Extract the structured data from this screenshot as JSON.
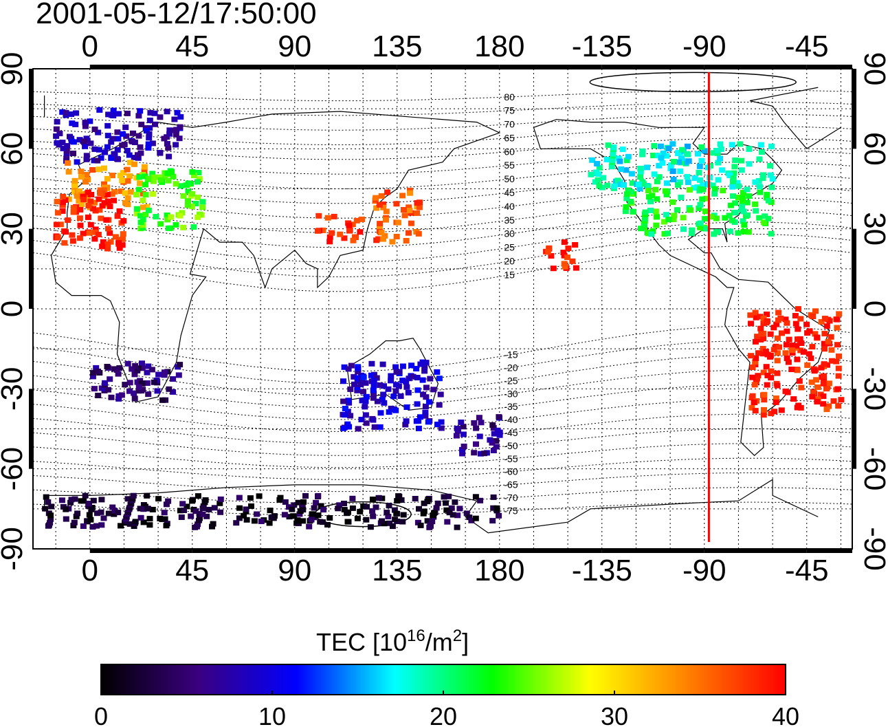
{
  "title": "2001-05-12/17:50:00",
  "colorbar": {
    "label_main": "TEC  [10",
    "label_sup1": "16",
    "label_mid": "/m",
    "label_sup2": "2",
    "label_end": "]",
    "ticks": [
      "0",
      "10",
      "20",
      "30",
      "40"
    ],
    "stops": [
      "#000000",
      "#3a0080",
      "#0000ff",
      "#00ffff",
      "#00ff00",
      "#ffff00",
      "#ff8000",
      "#ff0000"
    ]
  },
  "map": {
    "x_ticks_top": [
      "0",
      "45",
      "90",
      "135",
      "180",
      "-135",
      "-90",
      "-45"
    ],
    "x_ticks_bottom": [
      "0",
      "45",
      "90",
      "135",
      "180",
      "-135",
      "-90",
      "-45"
    ],
    "y_ticks_left": [
      "90",
      "60",
      "30",
      "0",
      "-30",
      "-60",
      "-90"
    ],
    "y_ticks_right": [
      "90",
      "60",
      "30",
      "0",
      "-30",
      "-60",
      "-90"
    ],
    "terminator_longitude": -88,
    "terminator_color": "#ff0000",
    "magnetic_latitude_labels": [
      "80",
      "75",
      "70",
      "65",
      "60",
      "55",
      "50",
      "45",
      "40",
      "35",
      "30",
      "25",
      "20",
      "15",
      "-15",
      "-20",
      "-25",
      "-30",
      "-35",
      "-40",
      "-45",
      "-50",
      "-55",
      "-60",
      "-65",
      "-70",
      "-75"
    ]
  },
  "chart_data": {
    "type": "heatmap",
    "title": "2001-05-12/17:50:00",
    "xlabel": "",
    "ylabel": "",
    "colorbar_label": "TEC  [10^16/m^2]",
    "value_range": [
      0,
      40
    ],
    "x_range": [
      -25,
      335
    ],
    "y_range": [
      -90,
      90
    ],
    "regions": [
      {
        "lon": [
          -15,
          40
        ],
        "lat": [
          55,
          75
        ],
        "tec": 8
      },
      {
        "lon": [
          -10,
          25
        ],
        "lat": [
          38,
          55
        ],
        "tec": 34
      },
      {
        "lon": [
          -15,
          15
        ],
        "lat": [
          22,
          45
        ],
        "tec": 39
      },
      {
        "lon": [
          20,
          50
        ],
        "lat": [
          30,
          52
        ],
        "tec": 24
      },
      {
        "lon": [
          125,
          145
        ],
        "lat": [
          25,
          45
        ],
        "tec": 36
      },
      {
        "lon": [
          100,
          120
        ],
        "lat": [
          25,
          35
        ],
        "tec": 39
      },
      {
        "lon": [
          220,
          300
        ],
        "lat": [
          45,
          62
        ],
        "tec": 18
      },
      {
        "lon": [
          235,
          300
        ],
        "lat": [
          28,
          45
        ],
        "tec": 22
      },
      {
        "lon": [
          290,
          330
        ],
        "lat": [
          -40,
          0
        ],
        "tec": 39
      },
      {
        "lon": [
          0,
          40
        ],
        "lat": [
          -35,
          -20
        ],
        "tec": 5
      },
      {
        "lon": [
          110,
          155
        ],
        "lat": [
          -45,
          -20
        ],
        "tec": 9
      },
      {
        "lon": [
          160,
          180
        ],
        "lat": [
          -55,
          -40
        ],
        "tec": 6
      },
      {
        "lon": [
          -20,
          180
        ],
        "lat": [
          -82,
          -70
        ],
        "tec": 2
      },
      {
        "lon": [
          200,
          215
        ],
        "lat": [
          15,
          25
        ],
        "tec": 39
      }
    ]
  }
}
